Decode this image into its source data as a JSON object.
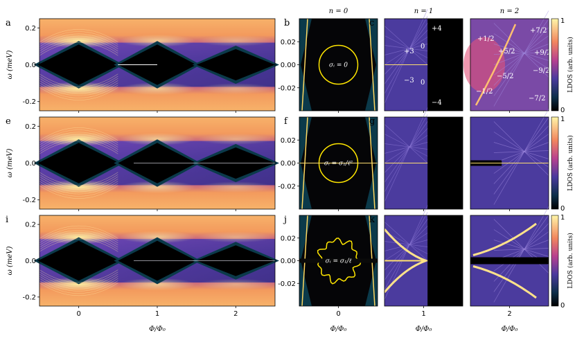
{
  "figure": {
    "panel_letters": [
      "a",
      "b",
      "c",
      "d",
      "e",
      "f",
      "g",
      "h",
      "i",
      "j",
      "k",
      "l"
    ],
    "column_titles": [
      "n = 0",
      "n = 1",
      "n = 2"
    ],
    "left_ylabel": "ω (meV)",
    "left_xlabel": "Φ/Φ₀",
    "right_xlabel": "Φ/Φ₀",
    "colorbar_label": "LDOS (arb. units)",
    "colorbar_ticks": [
      "0",
      "1"
    ],
    "sigma_labels": [
      "σᵢ = 0",
      "σᵢ = σ₁/ℓ²",
      "σᵢ = σ₁/ℓ"
    ],
    "c_annotations": [
      "+4",
      "+3",
      "0",
      "0",
      "−3",
      "−4"
    ],
    "d_annotations": [
      "+7/2",
      "+1/2",
      "+5/2",
      "+9/2",
      "−5/2",
      "−9/2",
      "−1/2",
      "−7/2"
    ],
    "colors": {
      "bg_warm": "#f4a15a",
      "hot": "#ffef9a",
      "purple": "#5a3fa6",
      "dark": "#000000",
      "teal": "#0b3a4a",
      "yellow_ring": "#ffe600"
    }
  },
  "chart_data": [
    {
      "type": "heatmap",
      "panels": [
        "a",
        "e",
        "i"
      ],
      "xlabel": "Φ/Φ₀",
      "ylabel": "ω (meV)",
      "x_ticks": [
        0,
        1,
        2
      ],
      "y_ticks": [
        -0.2,
        0.0,
        0.2
      ],
      "x_tick_labels": [
        "0",
        "1",
        "2"
      ],
      "y_tick_labels": [
        "-0.2",
        "0.0",
        "0.2"
      ],
      "xlim": [
        -0.5,
        2.5
      ],
      "ylim": [
        -0.25,
        0.25
      ]
    },
    {
      "type": "heatmap",
      "panels": [
        "b",
        "f",
        "j"
      ],
      "title": "n = 0",
      "xlabel": "Φ/Φ₀",
      "x_ticks": [
        0
      ],
      "x_tick_labels": [
        "0"
      ],
      "y_ticks": [
        -0.02,
        0.0,
        0.02
      ],
      "y_tick_labels": [
        "-0.02",
        "0.00",
        "0.02"
      ],
      "ylim": [
        -0.04,
        0.04
      ]
    },
    {
      "type": "heatmap",
      "panels": [
        "c",
        "g",
        "k"
      ],
      "title": "n = 1",
      "xlabel": "Φ/Φ₀",
      "x_ticks": [
        1
      ],
      "x_tick_labels": [
        "1"
      ]
    },
    {
      "type": "heatmap",
      "panels": [
        "d",
        "h",
        "l"
      ],
      "title": "n = 2",
      "xlabel": "Φ/Φ₀",
      "x_ticks": [
        2
      ],
      "x_tick_labels": [
        "2"
      ],
      "colorbar": {
        "label": "LDOS (arb. units)",
        "range": [
          0,
          1
        ]
      }
    }
  ]
}
